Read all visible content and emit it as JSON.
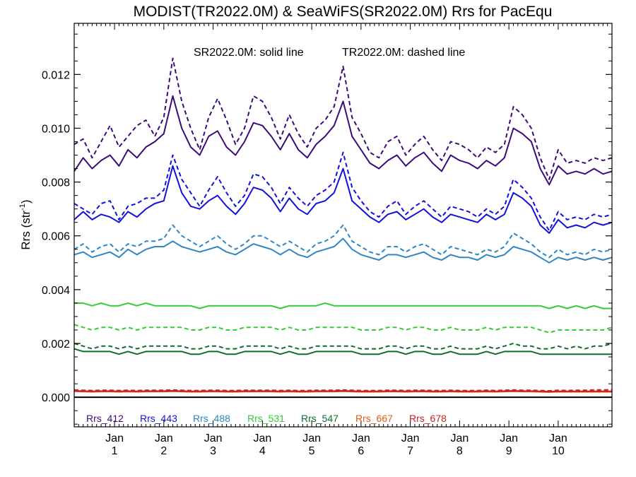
{
  "chart_data": {
    "type": "line",
    "title": "MODIST(TR2022.0M) & SeaWiFS(SR2022.0M)  Rrs for PacEqu",
    "annotation": {
      "solid": "SR2022.0M: solid line",
      "dashed": "TR2022.0M: dashed line"
    },
    "ylabel": {
      "base": "Rrs (str",
      "sup": "-1",
      "end": ")"
    },
    "ylim": [
      -0.0011,
      0.0139
    ],
    "xlim": [
      0,
      120
    ],
    "yticks": [
      0.0,
      0.002,
      0.004,
      0.006,
      0.008,
      0.01,
      0.012
    ],
    "ytick_labels": [
      "0.000",
      "0.002",
      "0.004",
      "0.006",
      "0.008",
      "0.010",
      "0.012"
    ],
    "xticks": [
      {
        "x": 9,
        "top": "Jan",
        "bottom": "1"
      },
      {
        "x": 20,
        "top": "Jan",
        "bottom": "2"
      },
      {
        "x": 31,
        "top": "Jan",
        "bottom": "3"
      },
      {
        "x": 42,
        "top": "Jan",
        "bottom": "4"
      },
      {
        "x": 53,
        "top": "Jan",
        "bottom": "5"
      },
      {
        "x": 64,
        "top": "Jan",
        "bottom": "6"
      },
      {
        "x": 75,
        "top": "Jan",
        "bottom": "7"
      },
      {
        "x": 86,
        "top": "Jan",
        "bottom": "8"
      },
      {
        "x": 97,
        "top": "Jan",
        "bottom": "9"
      },
      {
        "x": 108,
        "top": "Jan",
        "bottom": "10"
      }
    ],
    "zero_line": 0.0,
    "legend_placement": "bottom-left",
    "x": [
      0,
      2,
      4,
      6,
      8,
      10,
      12,
      14,
      16,
      18,
      20,
      22,
      24,
      26,
      28,
      30,
      32,
      34,
      36,
      38,
      40,
      42,
      44,
      46,
      48,
      50,
      52,
      54,
      56,
      58,
      60,
      62,
      64,
      66,
      68,
      70,
      72,
      74,
      76,
      78,
      80,
      82,
      84,
      86,
      88,
      90,
      92,
      94,
      96,
      98,
      100,
      102,
      104,
      106,
      108,
      110,
      112,
      114,
      116,
      118,
      120
    ],
    "series": [
      {
        "name": "Rrs_412",
        "color": "#3d0a7a",
        "solid": [
          0.0084,
          0.0089,
          0.0085,
          0.0088,
          0.009,
          0.0086,
          0.0092,
          0.0089,
          0.0093,
          0.0095,
          0.0098,
          0.0112,
          0.01,
          0.0093,
          0.009,
          0.0097,
          0.0099,
          0.0093,
          0.009,
          0.0095,
          0.0102,
          0.0101,
          0.0097,
          0.0092,
          0.0098,
          0.0092,
          0.0089,
          0.0094,
          0.0097,
          0.0101,
          0.011,
          0.0097,
          0.0092,
          0.0087,
          0.0085,
          0.0088,
          0.009,
          0.0086,
          0.0089,
          0.0091,
          0.0087,
          0.0084,
          0.009,
          0.0088,
          0.0087,
          0.0085,
          0.0088,
          0.0086,
          0.0089,
          0.01,
          0.0098,
          0.0095,
          0.0085,
          0.0079,
          0.0086,
          0.0083,
          0.0084,
          0.0083,
          0.0085,
          0.0083,
          0.0084
        ],
        "dashed": [
          0.0094,
          0.0096,
          0.0089,
          0.0095,
          0.0101,
          0.0093,
          0.0097,
          0.0101,
          0.0103,
          0.0097,
          0.0104,
          0.0126,
          0.011,
          0.01,
          0.0092,
          0.0104,
          0.0111,
          0.0103,
          0.0094,
          0.01,
          0.0112,
          0.011,
          0.0104,
          0.0096,
          0.0105,
          0.0098,
          0.0093,
          0.01,
          0.0103,
          0.0108,
          0.0123,
          0.0104,
          0.0098,
          0.0091,
          0.0089,
          0.0095,
          0.0097,
          0.009,
          0.0094,
          0.0097,
          0.0092,
          0.0088,
          0.0095,
          0.0094,
          0.0092,
          0.0089,
          0.0093,
          0.0091,
          0.0094,
          0.0108,
          0.0105,
          0.01,
          0.0089,
          0.0081,
          0.0092,
          0.0087,
          0.0088,
          0.0087,
          0.0089,
          0.0088,
          0.0089
        ]
      },
      {
        "name": "Rrs_443",
        "color": "#1010e0",
        "solid": [
          0.0066,
          0.0069,
          0.0066,
          0.0068,
          0.0067,
          0.0065,
          0.0069,
          0.0067,
          0.007,
          0.0072,
          0.0073,
          0.0086,
          0.0076,
          0.0071,
          0.007,
          0.0073,
          0.0075,
          0.0071,
          0.0068,
          0.0072,
          0.0078,
          0.0077,
          0.0074,
          0.0069,
          0.0074,
          0.007,
          0.0068,
          0.0072,
          0.0073,
          0.0076,
          0.0085,
          0.0073,
          0.007,
          0.0067,
          0.0065,
          0.0068,
          0.0069,
          0.0066,
          0.0068,
          0.007,
          0.0067,
          0.0065,
          0.0068,
          0.0067,
          0.0066,
          0.0065,
          0.0068,
          0.0066,
          0.0068,
          0.0076,
          0.0074,
          0.0071,
          0.0064,
          0.0061,
          0.0066,
          0.0063,
          0.0064,
          0.0063,
          0.0065,
          0.0064,
          0.0065
        ],
        "dashed": [
          0.0072,
          0.007,
          0.0068,
          0.0072,
          0.0073,
          0.0066,
          0.0071,
          0.0072,
          0.0074,
          0.0074,
          0.0077,
          0.009,
          0.0081,
          0.0076,
          0.0071,
          0.0077,
          0.0082,
          0.0076,
          0.0071,
          0.0075,
          0.0083,
          0.0082,
          0.0078,
          0.0072,
          0.0078,
          0.0074,
          0.0071,
          0.0075,
          0.0077,
          0.008,
          0.0091,
          0.0078,
          0.0073,
          0.0069,
          0.0067,
          0.0071,
          0.0073,
          0.0068,
          0.0071,
          0.0073,
          0.007,
          0.0067,
          0.0071,
          0.007,
          0.0069,
          0.0067,
          0.007,
          0.0068,
          0.0071,
          0.0081,
          0.0078,
          0.0074,
          0.0067,
          0.0062,
          0.0069,
          0.0066,
          0.0067,
          0.0066,
          0.0068,
          0.0067,
          0.0068
        ]
      },
      {
        "name": "Rrs_488",
        "color": "#2e85c4",
        "solid": [
          0.0053,
          0.0054,
          0.0052,
          0.0053,
          0.0054,
          0.0052,
          0.0055,
          0.0053,
          0.0055,
          0.0056,
          0.0056,
          0.0058,
          0.0056,
          0.0055,
          0.0054,
          0.0055,
          0.0056,
          0.0054,
          0.0053,
          0.0055,
          0.0057,
          0.0056,
          0.0055,
          0.0053,
          0.0055,
          0.0053,
          0.0052,
          0.0054,
          0.0055,
          0.0056,
          0.0059,
          0.0055,
          0.0053,
          0.0052,
          0.0051,
          0.0053,
          0.0053,
          0.0052,
          0.0053,
          0.0054,
          0.0052,
          0.0051,
          0.0053,
          0.0052,
          0.0052,
          0.0051,
          0.0053,
          0.0052,
          0.0053,
          0.0056,
          0.0055,
          0.0054,
          0.0052,
          0.005,
          0.0052,
          0.0051,
          0.0052,
          0.0051,
          0.0052,
          0.0051,
          0.0052
        ],
        "dashed": [
          0.0055,
          0.0057,
          0.0054,
          0.0056,
          0.0057,
          0.0054,
          0.0057,
          0.0056,
          0.0058,
          0.0058,
          0.0059,
          0.0064,
          0.006,
          0.0058,
          0.0056,
          0.0058,
          0.006,
          0.0057,
          0.0055,
          0.0057,
          0.006,
          0.006,
          0.0058,
          0.0056,
          0.0058,
          0.0056,
          0.0054,
          0.0057,
          0.0058,
          0.006,
          0.0064,
          0.0058,
          0.0056,
          0.0054,
          0.0053,
          0.0056,
          0.0056,
          0.0054,
          0.0056,
          0.0057,
          0.0055,
          0.0053,
          0.0056,
          0.0055,
          0.0054,
          0.0053,
          0.0055,
          0.0054,
          0.0056,
          0.0061,
          0.0059,
          0.0057,
          0.0054,
          0.0052,
          0.0055,
          0.0053,
          0.0054,
          0.0053,
          0.0055,
          0.0054,
          0.0055
        ]
      },
      {
        "name": "Rrs_531",
        "color": "#33cc33",
        "solid": [
          0.0035,
          0.0035,
          0.0034,
          0.0035,
          0.0034,
          0.0034,
          0.0035,
          0.0034,
          0.0035,
          0.0034,
          0.0034,
          0.0034,
          0.0034,
          0.0034,
          0.0033,
          0.0034,
          0.0034,
          0.0034,
          0.0034,
          0.0034,
          0.0034,
          0.0034,
          0.0034,
          0.0033,
          0.0034,
          0.0034,
          0.0034,
          0.0034,
          0.0035,
          0.0034,
          0.0034,
          0.0034,
          0.0034,
          0.0034,
          0.0034,
          0.0034,
          0.0034,
          0.0034,
          0.0034,
          0.0034,
          0.0034,
          0.0034,
          0.0034,
          0.0034,
          0.0034,
          0.0034,
          0.0034,
          0.0034,
          0.0034,
          0.0034,
          0.0034,
          0.0034,
          0.0034,
          0.0033,
          0.0034,
          0.0033,
          0.0034,
          0.0033,
          0.0034,
          0.0033,
          0.0033
        ],
        "dashed": [
          0.0027,
          0.0026,
          0.0025,
          0.0026,
          0.0026,
          0.0025,
          0.0026,
          0.0025,
          0.0026,
          0.0026,
          0.0026,
          0.0026,
          0.0026,
          0.0025,
          0.0025,
          0.0026,
          0.0026,
          0.0025,
          0.0025,
          0.0026,
          0.0026,
          0.0026,
          0.0026,
          0.0025,
          0.0026,
          0.0025,
          0.0025,
          0.0026,
          0.0026,
          0.0026,
          0.0026,
          0.0026,
          0.0025,
          0.0025,
          0.0025,
          0.0026,
          0.0026,
          0.0025,
          0.0026,
          0.0026,
          0.0025,
          0.0025,
          0.0026,
          0.0025,
          0.0025,
          0.0025,
          0.0026,
          0.0025,
          0.0026,
          0.0026,
          0.0026,
          0.0026,
          0.0025,
          0.0024,
          0.0025,
          0.0025,
          0.0025,
          0.0025,
          0.0025,
          0.0025,
          0.0026
        ]
      },
      {
        "name": "Rrs_547",
        "color": "#0d6e2e",
        "solid": [
          0.0018,
          0.0017,
          0.0017,
          0.0017,
          0.0017,
          0.0016,
          0.0017,
          0.0016,
          0.0017,
          0.0017,
          0.0017,
          0.0017,
          0.0017,
          0.0016,
          0.0016,
          0.0017,
          0.0017,
          0.0016,
          0.0016,
          0.0017,
          0.0017,
          0.0017,
          0.0017,
          0.0016,
          0.0017,
          0.0016,
          0.0016,
          0.0017,
          0.0017,
          0.0017,
          0.0017,
          0.0017,
          0.0016,
          0.0016,
          0.0016,
          0.0017,
          0.0017,
          0.0016,
          0.0017,
          0.0017,
          0.0016,
          0.0016,
          0.0017,
          0.0016,
          0.0016,
          0.0016,
          0.0017,
          0.0016,
          0.0017,
          0.0017,
          0.0017,
          0.0017,
          0.0016,
          0.0016,
          0.0016,
          0.0016,
          0.0016,
          0.0016,
          0.0016,
          0.0016,
          0.0016
        ],
        "dashed": [
          0.002,
          0.0019,
          0.0018,
          0.0019,
          0.0019,
          0.0018,
          0.0019,
          0.0018,
          0.0019,
          0.0019,
          0.0019,
          0.0019,
          0.0019,
          0.0018,
          0.0018,
          0.0019,
          0.0019,
          0.0018,
          0.0018,
          0.0019,
          0.0019,
          0.0019,
          0.0019,
          0.0018,
          0.0019,
          0.0018,
          0.0018,
          0.0019,
          0.0019,
          0.0019,
          0.0019,
          0.0019,
          0.0018,
          0.0018,
          0.0018,
          0.0019,
          0.0019,
          0.0018,
          0.0019,
          0.0019,
          0.0018,
          0.0018,
          0.0019,
          0.0018,
          0.0018,
          0.0018,
          0.0019,
          0.0018,
          0.0019,
          0.002,
          0.0019,
          0.0019,
          0.0018,
          0.0018,
          0.0019,
          0.0018,
          0.0019,
          0.0018,
          0.0019,
          0.0019,
          0.002
        ]
      },
      {
        "name": "Rrs_667",
        "color": "#e05a10",
        "solid": [
          0.00022,
          0.00021,
          0.0002,
          0.00021,
          0.00021,
          0.0002,
          0.00021,
          0.0002,
          0.00021,
          0.00021,
          0.00021,
          0.00022,
          0.00021,
          0.0002,
          0.0002,
          0.00021,
          0.00021,
          0.0002,
          0.0002,
          0.00021,
          0.00021,
          0.00021,
          0.00021,
          0.0002,
          0.00021,
          0.0002,
          0.0002,
          0.00021,
          0.00021,
          0.00021,
          0.00022,
          0.00021,
          0.0002,
          0.0002,
          0.0002,
          0.00021,
          0.00021,
          0.0002,
          0.00021,
          0.00021,
          0.0002,
          0.0002,
          0.00021,
          0.0002,
          0.0002,
          0.0002,
          0.00021,
          0.0002,
          0.00021,
          0.00022,
          0.00021,
          0.00021,
          0.0002,
          0.00019,
          0.0002,
          0.0002,
          0.0002,
          0.0002,
          0.0002,
          0.0002,
          0.0002
        ],
        "dashed": [
          0.00025,
          0.00024,
          0.00023,
          0.00024,
          0.00024,
          0.00023,
          0.00024,
          0.00023,
          0.00024,
          0.00024,
          0.00024,
          0.00025,
          0.00024,
          0.00023,
          0.00023,
          0.00024,
          0.00024,
          0.00023,
          0.00023,
          0.00024,
          0.00024,
          0.00024,
          0.00024,
          0.00023,
          0.00024,
          0.00023,
          0.00023,
          0.00024,
          0.00024,
          0.00024,
          0.00025,
          0.00024,
          0.00023,
          0.00023,
          0.00023,
          0.00024,
          0.00024,
          0.00023,
          0.00024,
          0.00024,
          0.00023,
          0.00023,
          0.00024,
          0.00023,
          0.00023,
          0.00023,
          0.00024,
          0.00023,
          0.00024,
          0.00025,
          0.00024,
          0.00024,
          0.00023,
          0.00022,
          0.00024,
          0.00023,
          0.00024,
          0.00024,
          0.00025,
          0.00025,
          0.00026
        ]
      },
      {
        "name": "Rrs_678",
        "color": "#cc1f1f",
        "solid": [
          0.00024,
          0.00023,
          0.00022,
          0.00023,
          0.00023,
          0.00022,
          0.00023,
          0.00022,
          0.00023,
          0.00023,
          0.00023,
          0.00024,
          0.00023,
          0.00022,
          0.00022,
          0.00023,
          0.00023,
          0.00022,
          0.00022,
          0.00023,
          0.00023,
          0.00023,
          0.00023,
          0.00022,
          0.00023,
          0.00022,
          0.00022,
          0.00023,
          0.00023,
          0.00023,
          0.00024,
          0.00023,
          0.00022,
          0.00022,
          0.00022,
          0.00023,
          0.00023,
          0.00022,
          0.00023,
          0.00023,
          0.00022,
          0.00022,
          0.00023,
          0.00022,
          0.00022,
          0.00022,
          0.00023,
          0.00022,
          0.00023,
          0.00024,
          0.00023,
          0.00023,
          0.00022,
          0.00021,
          0.00022,
          0.00022,
          0.00022,
          0.00022,
          0.00022,
          0.00022,
          0.00022
        ],
        "dashed": [
          0.00027,
          0.00026,
          0.00025,
          0.00026,
          0.00026,
          0.00025,
          0.00026,
          0.00025,
          0.00026,
          0.00026,
          0.00026,
          0.00027,
          0.00026,
          0.00025,
          0.00025,
          0.00026,
          0.00026,
          0.00025,
          0.00025,
          0.00026,
          0.00026,
          0.00026,
          0.00026,
          0.00025,
          0.00026,
          0.00025,
          0.00025,
          0.00026,
          0.00026,
          0.00026,
          0.00027,
          0.00026,
          0.00025,
          0.00025,
          0.00025,
          0.00026,
          0.00026,
          0.00025,
          0.00026,
          0.00026,
          0.00025,
          0.00025,
          0.00026,
          0.00025,
          0.00025,
          0.00025,
          0.00026,
          0.00025,
          0.00026,
          0.00027,
          0.00026,
          0.00026,
          0.00025,
          0.00024,
          0.00026,
          0.00025,
          0.00026,
          0.00026,
          0.00027,
          0.00027,
          0.00028
        ]
      }
    ]
  }
}
